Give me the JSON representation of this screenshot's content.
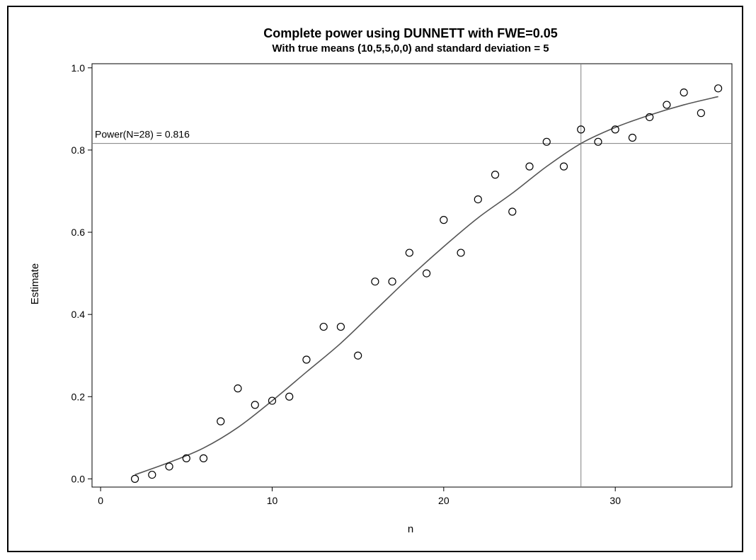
{
  "chart_data": {
    "type": "scatter",
    "title": "Complete power using DUNNETT with FWE=0.05",
    "subtitle": "With true means (10,5,5,0,0) and standard deviation = 5",
    "xlabel": "n",
    "ylabel": "Estimate",
    "xlim": [
      -0.5,
      36.8
    ],
    "ylim": [
      -0.02,
      1.01
    ],
    "xticks": [
      0,
      10,
      20,
      30
    ],
    "yticks": [
      0.0,
      0.2,
      0.4,
      0.6,
      0.8,
      1.0
    ],
    "grid": false,
    "series": [
      {
        "marker": "open-circle",
        "x": [
          2,
          3,
          4,
          5,
          6,
          7,
          8,
          9,
          10,
          11,
          12,
          13,
          14,
          15,
          16,
          17,
          18,
          19,
          20,
          21,
          22,
          23,
          24,
          25,
          26,
          27,
          28,
          29,
          30,
          31,
          32,
          33,
          34,
          35,
          36
        ],
        "y": [
          0.0,
          0.01,
          0.03,
          0.05,
          0.05,
          0.14,
          0.22,
          0.18,
          0.19,
          0.2,
          0.29,
          0.37,
          0.37,
          0.3,
          0.48,
          0.48,
          0.55,
          0.5,
          0.63,
          0.55,
          0.68,
          0.74,
          0.65,
          0.76,
          0.82,
          0.76,
          0.85,
          0.82,
          0.85,
          0.83,
          0.88,
          0.91,
          0.94,
          0.89,
          0.95
        ]
      },
      {
        "line": "smooth-fit",
        "x": [
          2,
          4,
          6,
          8,
          10,
          12,
          14,
          16,
          18,
          20,
          22,
          24,
          26,
          28,
          30,
          32,
          34,
          36
        ],
        "y": [
          0.01,
          0.04,
          0.075,
          0.125,
          0.19,
          0.26,
          0.33,
          0.41,
          0.49,
          0.565,
          0.635,
          0.695,
          0.76,
          0.816,
          0.855,
          0.885,
          0.91,
          0.93
        ]
      }
    ],
    "reference": {
      "x": 28,
      "y": 0.816,
      "label": "Power(N=28) = 0.816"
    }
  }
}
